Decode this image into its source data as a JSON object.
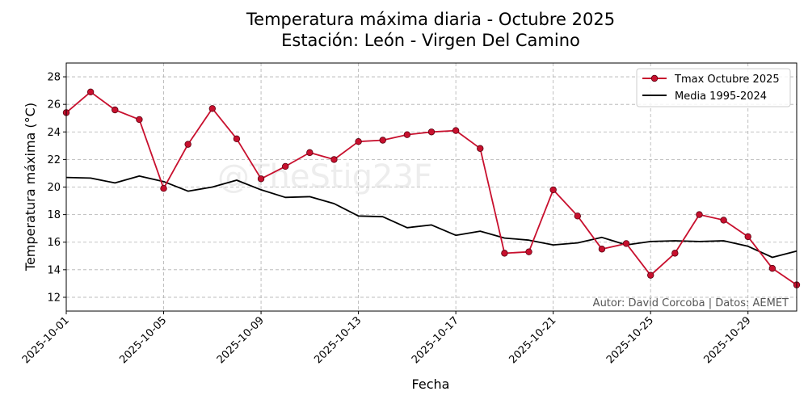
{
  "chart_data": {
    "type": "line",
    "title_line1": "Temperatura máxima diaria - Octubre 2025",
    "title_line2": "Estación: León - Virgen Del Camino",
    "xlabel": "Fecha",
    "ylabel": "Temperatura máxima (°C)",
    "xlim": [
      1,
      31
    ],
    "ylim": [
      11,
      29
    ],
    "yticks": [
      12,
      14,
      16,
      18,
      20,
      22,
      24,
      26,
      28
    ],
    "xticks": [
      {
        "day": 1,
        "label": "2025-10-01"
      },
      {
        "day": 5,
        "label": "2025-10-05"
      },
      {
        "day": 9,
        "label": "2025-10-09"
      },
      {
        "day": 13,
        "label": "2025-10-13"
      },
      {
        "day": 17,
        "label": "2025-10-17"
      },
      {
        "day": 21,
        "label": "2025-10-21"
      },
      {
        "day": 25,
        "label": "2025-10-25"
      },
      {
        "day": 29,
        "label": "2025-10-29"
      }
    ],
    "days": [
      1,
      2,
      3,
      4,
      5,
      6,
      7,
      8,
      9,
      10,
      11,
      12,
      13,
      14,
      15,
      16,
      17,
      18,
      19,
      20,
      21,
      22,
      23,
      24,
      25,
      26,
      27,
      28,
      29,
      30,
      31
    ],
    "series": [
      {
        "name": "Tmax Octubre 2025",
        "color": "#c8102e",
        "marker": true,
        "values": [
          25.4,
          26.9,
          25.6,
          24.9,
          19.9,
          23.1,
          25.7,
          23.5,
          20.6,
          21.5,
          22.5,
          22.0,
          23.3,
          23.4,
          23.8,
          24.0,
          24.1,
          22.8,
          15.2,
          15.3,
          19.8,
          17.9,
          15.5,
          15.9,
          13.6,
          15.2,
          18.0,
          17.6,
          16.4,
          14.1,
          12.9
        ]
      },
      {
        "name": "Media 1995-2024",
        "color": "#000000",
        "marker": false,
        "values": [
          20.7,
          20.65,
          20.3,
          20.8,
          20.4,
          19.7,
          20.0,
          20.5,
          19.8,
          19.25,
          19.3,
          18.8,
          17.9,
          17.85,
          17.05,
          17.25,
          16.5,
          16.8,
          16.3,
          16.15,
          15.8,
          15.95,
          16.35,
          15.8,
          16.05,
          16.1,
          16.05,
          16.1,
          15.7,
          14.9,
          15.35
        ]
      }
    ],
    "legend_position": "top-right",
    "grid": true
  },
  "annotations": {
    "credit": "Autor: David Corcoba | Datos: AEMET",
    "watermark": "@TheStig23F"
  }
}
